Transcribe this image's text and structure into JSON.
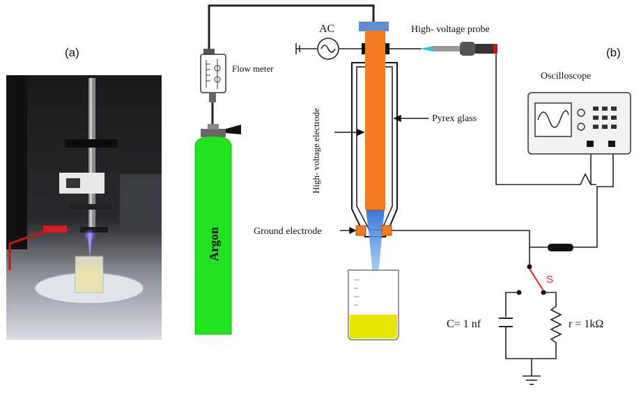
{
  "panels": {
    "a": "(a)",
    "b": "(b)"
  },
  "labels": {
    "ac": "AC",
    "hv_probe": "High- voltage probe",
    "flow_meter": "Flow meter",
    "oscilloscope": "Oscilloscope",
    "hv_electrode": "High- voltage electrode",
    "pyrex": "Pyrex glass",
    "argon": "Argon",
    "ground_electrode": "Ground electrode",
    "switch": "S",
    "capacitor": "C= 1 nf",
    "resistor": "r = 1kΩ"
  },
  "colors": {
    "electrode": "#f47c20",
    "argon_tank": "#22e31f",
    "liquid": "#e6e600",
    "cap_blue": "#5b8fd6",
    "probe_tip": "#1fc7e8",
    "switch_red": "#e8231c",
    "plasma": "#4a9be8"
  }
}
